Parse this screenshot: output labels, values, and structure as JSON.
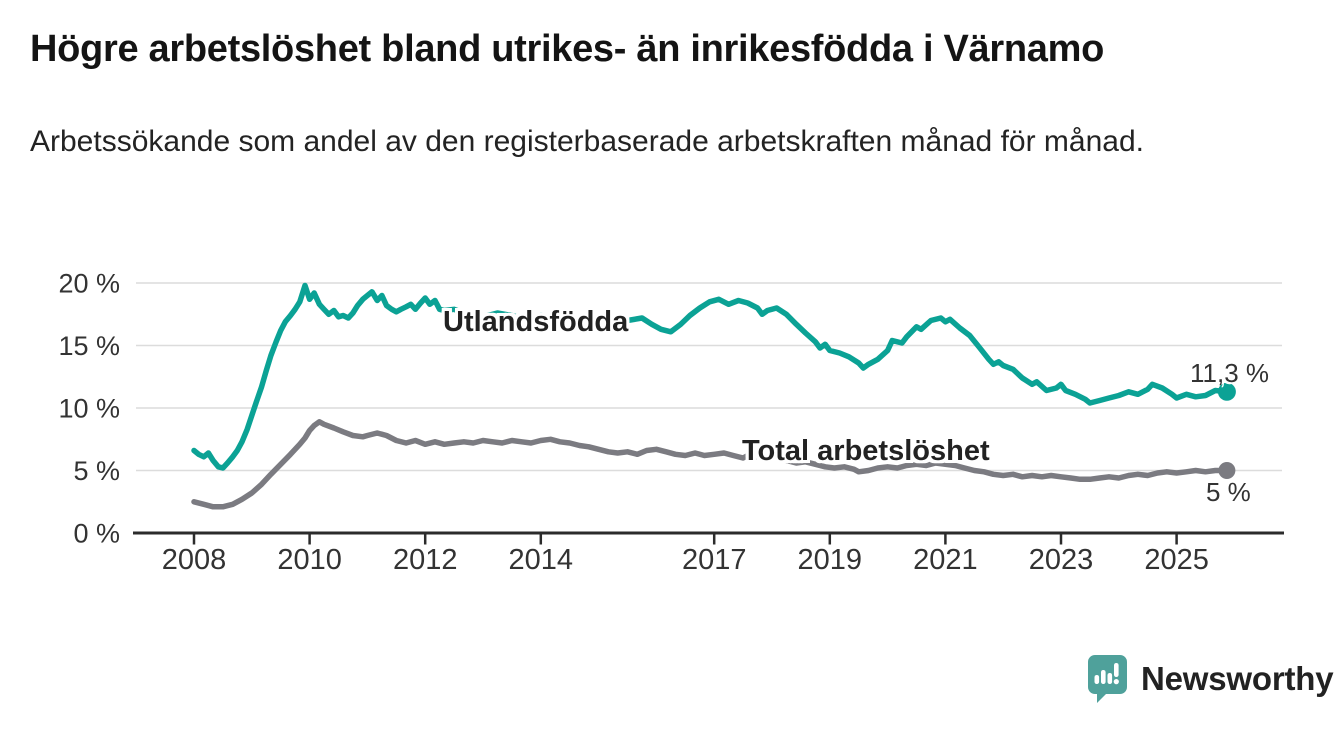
{
  "header": {
    "title": "Högre arbetslöshet bland utrikes- än inrikesfödda i Värnamo",
    "subtitle": "Arbetssökande som andel av den registerbaserade arbetskraften månad för månad."
  },
  "footer": {
    "brand": "Newsworthy"
  },
  "colors": {
    "series1": "#0ba295",
    "series2": "#7b7b81",
    "grid": "#dcdcdc",
    "axis": "#2b2b2b",
    "tick_text": "#333333",
    "logo_teal": "#4fa19b",
    "background": "#ffffff"
  },
  "chart_data": {
    "type": "line",
    "title": "Högre arbetslöshet bland utrikes- än inrikesfödda i Värnamo",
    "subtitle": "Arbetssökande som andel av den registerbaserade arbetskraften månad för månad.",
    "xlabel": "",
    "ylabel": "",
    "ylim": [
      0,
      20.5
    ],
    "xlim": [
      2006.9,
      2026.9
    ],
    "grid": "horizontal",
    "legend_position": "inline-labels",
    "y_ticks": [
      {
        "v": 0,
        "label": "0 %"
      },
      {
        "v": 5,
        "label": "5 %"
      },
      {
        "v": 10,
        "label": "10 %"
      },
      {
        "v": 15,
        "label": "15 %"
      },
      {
        "v": 20,
        "label": "20 %"
      }
    ],
    "x_ticks": [
      {
        "v": 2008,
        "label": "2008"
      },
      {
        "v": 2010,
        "label": "2010"
      },
      {
        "v": 2012,
        "label": "2012"
      },
      {
        "v": 2014,
        "label": "2014"
      },
      {
        "v": 2017,
        "label": "2017"
      },
      {
        "v": 2019,
        "label": "2019"
      },
      {
        "v": 2021,
        "label": "2021"
      },
      {
        "v": 2023,
        "label": "2023"
      },
      {
        "v": 2025,
        "label": "2025"
      }
    ],
    "series": [
      {
        "name": "Utlandsfödda",
        "end_label": "11,3 %",
        "end_value": 11.3,
        "points": [
          [
            2008.0,
            6.6
          ],
          [
            2008.08,
            6.3
          ],
          [
            2008.17,
            6.1
          ],
          [
            2008.25,
            6.4
          ],
          [
            2008.33,
            5.8
          ],
          [
            2008.42,
            5.3
          ],
          [
            2008.5,
            5.2
          ],
          [
            2008.58,
            5.6
          ],
          [
            2008.67,
            6.1
          ],
          [
            2008.75,
            6.6
          ],
          [
            2008.83,
            7.3
          ],
          [
            2008.92,
            8.3
          ],
          [
            2009.0,
            9.4
          ],
          [
            2009.08,
            10.5
          ],
          [
            2009.17,
            11.7
          ],
          [
            2009.25,
            13.0
          ],
          [
            2009.33,
            14.2
          ],
          [
            2009.42,
            15.3
          ],
          [
            2009.5,
            16.2
          ],
          [
            2009.58,
            16.9
          ],
          [
            2009.67,
            17.4
          ],
          [
            2009.75,
            17.9
          ],
          [
            2009.83,
            18.5
          ],
          [
            2009.92,
            19.8
          ],
          [
            2010.0,
            18.7
          ],
          [
            2010.08,
            19.2
          ],
          [
            2010.17,
            18.3
          ],
          [
            2010.25,
            17.9
          ],
          [
            2010.33,
            17.5
          ],
          [
            2010.42,
            17.8
          ],
          [
            2010.5,
            17.3
          ],
          [
            2010.58,
            17.4
          ],
          [
            2010.67,
            17.2
          ],
          [
            2010.75,
            17.6
          ],
          [
            2010.83,
            18.2
          ],
          [
            2010.92,
            18.7
          ],
          [
            2011.0,
            19.0
          ],
          [
            2011.08,
            19.3
          ],
          [
            2011.17,
            18.6
          ],
          [
            2011.25,
            19.0
          ],
          [
            2011.33,
            18.2
          ],
          [
            2011.42,
            17.9
          ],
          [
            2011.5,
            17.7
          ],
          [
            2011.58,
            17.9
          ],
          [
            2011.67,
            18.1
          ],
          [
            2011.75,
            18.3
          ],
          [
            2011.83,
            17.9
          ],
          [
            2011.92,
            18.4
          ],
          [
            2012.0,
            18.8
          ],
          [
            2012.08,
            18.3
          ],
          [
            2012.17,
            18.6
          ],
          [
            2012.25,
            17.9
          ],
          [
            2012.33,
            17.8
          ],
          [
            2012.5,
            17.9
          ],
          [
            2012.67,
            17.6
          ],
          [
            2012.83,
            17.4
          ],
          [
            2013.0,
            17.3
          ],
          [
            2013.25,
            17.6
          ],
          [
            2013.5,
            17.4
          ],
          [
            2013.75,
            17.1
          ],
          [
            2014.0,
            17.4
          ],
          [
            2014.25,
            17.2
          ],
          [
            2014.5,
            16.9
          ],
          [
            2014.75,
            17.1
          ],
          [
            2015.0,
            16.8
          ],
          [
            2015.25,
            16.6
          ],
          [
            2015.5,
            17.0
          ],
          [
            2015.75,
            17.2
          ],
          [
            2015.92,
            16.7
          ],
          [
            2016.08,
            16.3
          ],
          [
            2016.25,
            16.1
          ],
          [
            2016.42,
            16.7
          ],
          [
            2016.58,
            17.4
          ],
          [
            2016.75,
            18.0
          ],
          [
            2016.92,
            18.5
          ],
          [
            2017.08,
            18.7
          ],
          [
            2017.25,
            18.3
          ],
          [
            2017.42,
            18.6
          ],
          [
            2017.58,
            18.4
          ],
          [
            2017.75,
            18.0
          ],
          [
            2017.83,
            17.5
          ],
          [
            2017.92,
            17.8
          ],
          [
            2018.08,
            18.0
          ],
          [
            2018.25,
            17.5
          ],
          [
            2018.42,
            16.7
          ],
          [
            2018.58,
            16.0
          ],
          [
            2018.75,
            15.3
          ],
          [
            2018.83,
            14.8
          ],
          [
            2018.92,
            15.1
          ],
          [
            2019.0,
            14.6
          ],
          [
            2019.17,
            14.4
          ],
          [
            2019.33,
            14.1
          ],
          [
            2019.5,
            13.6
          ],
          [
            2019.58,
            13.2
          ],
          [
            2019.67,
            13.5
          ],
          [
            2019.83,
            13.9
          ],
          [
            2020.0,
            14.6
          ],
          [
            2020.08,
            15.4
          ],
          [
            2020.25,
            15.2
          ],
          [
            2020.33,
            15.7
          ],
          [
            2020.5,
            16.5
          ],
          [
            2020.58,
            16.3
          ],
          [
            2020.75,
            17.0
          ],
          [
            2020.92,
            17.2
          ],
          [
            2021.0,
            16.9
          ],
          [
            2021.08,
            17.1
          ],
          [
            2021.25,
            16.4
          ],
          [
            2021.42,
            15.8
          ],
          [
            2021.58,
            14.9
          ],
          [
            2021.75,
            13.9
          ],
          [
            2021.83,
            13.5
          ],
          [
            2021.92,
            13.7
          ],
          [
            2022.0,
            13.4
          ],
          [
            2022.17,
            13.1
          ],
          [
            2022.33,
            12.4
          ],
          [
            2022.5,
            11.9
          ],
          [
            2022.58,
            12.1
          ],
          [
            2022.75,
            11.4
          ],
          [
            2022.92,
            11.6
          ],
          [
            2023.0,
            11.9
          ],
          [
            2023.08,
            11.4
          ],
          [
            2023.25,
            11.1
          ],
          [
            2023.42,
            10.7
          ],
          [
            2023.5,
            10.4
          ],
          [
            2023.67,
            10.6
          ],
          [
            2023.83,
            10.8
          ],
          [
            2024.0,
            11.0
          ],
          [
            2024.17,
            11.3
          ],
          [
            2024.33,
            11.1
          ],
          [
            2024.5,
            11.5
          ],
          [
            2024.58,
            11.9
          ],
          [
            2024.75,
            11.6
          ],
          [
            2024.92,
            11.1
          ],
          [
            2025.0,
            10.8
          ],
          [
            2025.17,
            11.1
          ],
          [
            2025.33,
            10.9
          ],
          [
            2025.5,
            11.0
          ],
          [
            2025.67,
            11.4
          ],
          [
            2025.87,
            11.3
          ]
        ]
      },
      {
        "name": "Total arbetslöshet",
        "end_label": "5 %",
        "end_value": 5.0,
        "points": [
          [
            2008.0,
            2.5
          ],
          [
            2008.17,
            2.3
          ],
          [
            2008.33,
            2.1
          ],
          [
            2008.5,
            2.1
          ],
          [
            2008.67,
            2.3
          ],
          [
            2008.83,
            2.7
          ],
          [
            2009.0,
            3.2
          ],
          [
            2009.17,
            3.9
          ],
          [
            2009.33,
            4.7
          ],
          [
            2009.5,
            5.5
          ],
          [
            2009.67,
            6.3
          ],
          [
            2009.83,
            7.1
          ],
          [
            2009.92,
            7.6
          ],
          [
            2010.0,
            8.2
          ],
          [
            2010.08,
            8.6
          ],
          [
            2010.17,
            8.9
          ],
          [
            2010.25,
            8.7
          ],
          [
            2010.42,
            8.4
          ],
          [
            2010.58,
            8.1
          ],
          [
            2010.75,
            7.8
          ],
          [
            2010.92,
            7.7
          ],
          [
            2011.0,
            7.8
          ],
          [
            2011.17,
            8.0
          ],
          [
            2011.33,
            7.8
          ],
          [
            2011.5,
            7.4
          ],
          [
            2011.67,
            7.2
          ],
          [
            2011.83,
            7.4
          ],
          [
            2012.0,
            7.1
          ],
          [
            2012.17,
            7.3
          ],
          [
            2012.33,
            7.1
          ],
          [
            2012.5,
            7.2
          ],
          [
            2012.67,
            7.3
          ],
          [
            2012.83,
            7.2
          ],
          [
            2013.0,
            7.4
          ],
          [
            2013.17,
            7.3
          ],
          [
            2013.33,
            7.2
          ],
          [
            2013.5,
            7.4
          ],
          [
            2013.67,
            7.3
          ],
          [
            2013.83,
            7.2
          ],
          [
            2014.0,
            7.4
          ],
          [
            2014.17,
            7.5
          ],
          [
            2014.33,
            7.3
          ],
          [
            2014.5,
            7.2
          ],
          [
            2014.67,
            7.0
          ],
          [
            2014.83,
            6.9
          ],
          [
            2015.0,
            6.7
          ],
          [
            2015.17,
            6.5
          ],
          [
            2015.33,
            6.4
          ],
          [
            2015.5,
            6.5
          ],
          [
            2015.67,
            6.3
          ],
          [
            2015.83,
            6.6
          ],
          [
            2016.0,
            6.7
          ],
          [
            2016.17,
            6.5
          ],
          [
            2016.33,
            6.3
          ],
          [
            2016.5,
            6.2
          ],
          [
            2016.67,
            6.4
          ],
          [
            2016.83,
            6.2
          ],
          [
            2017.0,
            6.3
          ],
          [
            2017.17,
            6.4
          ],
          [
            2017.33,
            6.2
          ],
          [
            2017.5,
            6.0
          ],
          [
            2017.58,
            6.2
          ],
          [
            2017.75,
            6.1
          ],
          [
            2017.92,
            5.9
          ],
          [
            2018.08,
            6.0
          ],
          [
            2018.25,
            5.8
          ],
          [
            2018.42,
            5.6
          ],
          [
            2018.58,
            5.7
          ],
          [
            2018.75,
            5.5
          ],
          [
            2018.92,
            5.3
          ],
          [
            2019.08,
            5.2
          ],
          [
            2019.25,
            5.3
          ],
          [
            2019.42,
            5.1
          ],
          [
            2019.5,
            4.9
          ],
          [
            2019.67,
            5.0
          ],
          [
            2019.83,
            5.2
          ],
          [
            2020.0,
            5.3
          ],
          [
            2020.17,
            5.2
          ],
          [
            2020.33,
            5.4
          ],
          [
            2020.5,
            5.5
          ],
          [
            2020.67,
            5.4
          ],
          [
            2020.83,
            5.6
          ],
          [
            2021.0,
            5.5
          ],
          [
            2021.17,
            5.4
          ],
          [
            2021.33,
            5.2
          ],
          [
            2021.5,
            5.0
          ],
          [
            2021.67,
            4.9
          ],
          [
            2021.83,
            4.7
          ],
          [
            2022.0,
            4.6
          ],
          [
            2022.17,
            4.7
          ],
          [
            2022.33,
            4.5
          ],
          [
            2022.5,
            4.6
          ],
          [
            2022.67,
            4.5
          ],
          [
            2022.83,
            4.6
          ],
          [
            2023.0,
            4.5
          ],
          [
            2023.17,
            4.4
          ],
          [
            2023.33,
            4.3
          ],
          [
            2023.5,
            4.3
          ],
          [
            2023.67,
            4.4
          ],
          [
            2023.83,
            4.5
          ],
          [
            2024.0,
            4.4
          ],
          [
            2024.17,
            4.6
          ],
          [
            2024.33,
            4.7
          ],
          [
            2024.5,
            4.6
          ],
          [
            2024.67,
            4.8
          ],
          [
            2024.83,
            4.9
          ],
          [
            2025.0,
            4.8
          ],
          [
            2025.17,
            4.9
          ],
          [
            2025.33,
            5.0
          ],
          [
            2025.5,
            4.9
          ],
          [
            2025.67,
            5.0
          ],
          [
            2025.87,
            5.0
          ]
        ]
      }
    ]
  }
}
